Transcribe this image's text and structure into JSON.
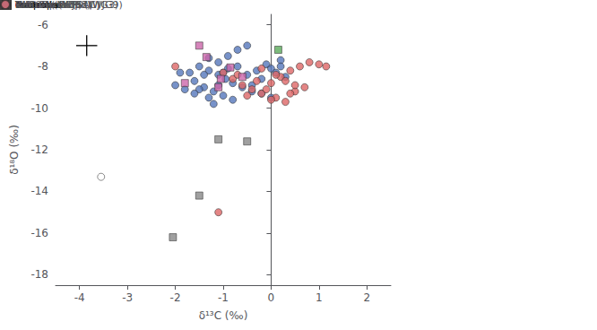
{
  "chart_data": {
    "type": "scatter",
    "xlabel": "δ¹³C (‰)",
    "ylabel": "δ¹⁸O (‰)",
    "xlim": [
      -4.5,
      2.5
    ],
    "ylim": [
      -18.5,
      -5.5
    ],
    "xticks": [
      -4,
      -3,
      -2,
      -1,
      0,
      1,
      2
    ],
    "yticks": [
      -18,
      -16,
      -14,
      -12,
      -10,
      -8,
      -6
    ],
    "grid": false,
    "legend": "right",
    "series": [
      {
        "name": "Boetsap (WJG1)",
        "color": "#5577bb",
        "marker": "circle",
        "values": [
          [
            -1.7,
            -8.3
          ],
          [
            -1.5,
            -8.0
          ],
          [
            -1.3,
            -8.2
          ],
          [
            -1.1,
            -8.4
          ],
          [
            -0.95,
            -8.6
          ],
          [
            -0.8,
            -8.8
          ],
          [
            -1.4,
            -9.0
          ],
          [
            -1.2,
            -9.2
          ],
          [
            -1.0,
            -9.4
          ],
          [
            -1.6,
            -8.7
          ],
          [
            -1.3,
            -9.5
          ],
          [
            -1.1,
            -7.8
          ],
          [
            -0.9,
            -8.1
          ],
          [
            -1.5,
            -9.1
          ],
          [
            -1.3,
            -7.6
          ],
          [
            -1.0,
            -8.3
          ],
          [
            -0.7,
            -8.0
          ],
          [
            -0.5,
            -8.4
          ],
          [
            -0.3,
            -8.2
          ],
          [
            -0.2,
            -8.6
          ],
          [
            -0.1,
            -7.9
          ],
          [
            0.0,
            -8.1
          ],
          [
            0.1,
            -8.3
          ],
          [
            0.2,
            -7.7
          ],
          [
            0.3,
            -8.5
          ],
          [
            -0.6,
            -9.0
          ],
          [
            -0.4,
            -9.2
          ],
          [
            -0.8,
            -9.6
          ],
          [
            -1.2,
            -9.8
          ],
          [
            -1.6,
            -9.3
          ],
          [
            -2.0,
            -8.9
          ],
          [
            -1.8,
            -9.1
          ],
          [
            -1.9,
            -8.3
          ],
          [
            -0.9,
            -7.5
          ],
          [
            -0.7,
            -7.2
          ],
          [
            -0.5,
            -7.0
          ],
          [
            -0.4,
            -8.9
          ],
          [
            -0.2,
            -9.3
          ],
          [
            0.0,
            -9.5
          ],
          [
            0.2,
            -8.0
          ],
          [
            -1.4,
            -8.4
          ],
          [
            -1.1,
            -8.9
          ]
        ]
      },
      {
        "name": "Kuruman Kop (WJG3)",
        "color": "#dd6666",
        "marker": "circle",
        "values": [
          [
            -1.0,
            -8.3
          ],
          [
            -0.8,
            -8.6
          ],
          [
            -0.6,
            -8.9
          ],
          [
            -0.4,
            -9.1
          ],
          [
            -0.2,
            -9.3
          ],
          [
            0.0,
            -8.8
          ],
          [
            0.2,
            -8.5
          ],
          [
            0.4,
            -8.2
          ],
          [
            0.6,
            -8.0
          ],
          [
            0.8,
            -7.8
          ],
          [
            1.0,
            -7.9
          ],
          [
            0.1,
            -9.5
          ],
          [
            0.3,
            -9.7
          ],
          [
            0.5,
            -9.2
          ],
          [
            0.7,
            -9.0
          ],
          [
            -0.2,
            -8.1
          ],
          [
            0.1,
            -8.4
          ],
          [
            0.3,
            -8.7
          ],
          [
            0.5,
            -8.9
          ],
          [
            -0.5,
            -9.4
          ],
          [
            0.0,
            -9.6
          ],
          [
            -0.7,
            -8.4
          ],
          [
            -0.3,
            -8.7
          ],
          [
            1.15,
            -8.0
          ],
          [
            -0.1,
            -9.1
          ],
          [
            0.4,
            -9.3
          ],
          [
            -1.1,
            -15.0
          ],
          [
            -2.0,
            -8.0
          ]
        ]
      },
      {
        "name": "Rotterdam Far (WJG9)",
        "color": "#ffffff",
        "marker": "circle",
        "values": [
          [
            -3.55,
            -13.3
          ]
        ]
      },
      {
        "name": "BH1-Sacha (SAC)",
        "color": "#5aaa5a",
        "marker": "square",
        "values": [
          [
            0.15,
            -7.2
          ]
        ]
      },
      {
        "name": "WB-98 ( WB98)",
        "color": "#cc66aa",
        "marker": "square",
        "values": [
          [
            -1.5,
            -7.0
          ],
          [
            -1.35,
            -7.55
          ],
          [
            -1.05,
            -8.6
          ],
          [
            -0.85,
            -8.05
          ],
          [
            -0.6,
            -8.5
          ],
          [
            -1.8,
            -8.8
          ],
          [
            -1.1,
            -9.0
          ]
        ]
      },
      {
        "name": "GKP 01 (GKP)",
        "color": "#888888",
        "marker": "square",
        "values": [
          [
            -1.1,
            -11.5
          ],
          [
            -0.5,
            -11.6
          ],
          [
            -1.5,
            -14.2
          ],
          [
            -2.05,
            -16.2
          ]
        ]
      }
    ],
    "legend_sections": [
      {
        "title": "Transvaal",
        "entries": [
          "Rotterdam Far (WJG9)"
        ]
      },
      {
        "title": "Griq. West",
        "entries": []
      },
      {
        "title": "core",
        "entries": [
          "BH1-Sacha (SAC)",
          "WB-98 ( WB98)",
          "GKP 01 (GKP)"
        ]
      },
      {
        "title": "ouctrops",
        "entries": [
          "Boetsap (WJG1)",
          "Kuruman Kop (WJG3)"
        ]
      }
    ],
    "error_bar": {
      "x": -3.85,
      "y": -7.0,
      "xerr": 0.22,
      "yerr": 0.5
    }
  }
}
